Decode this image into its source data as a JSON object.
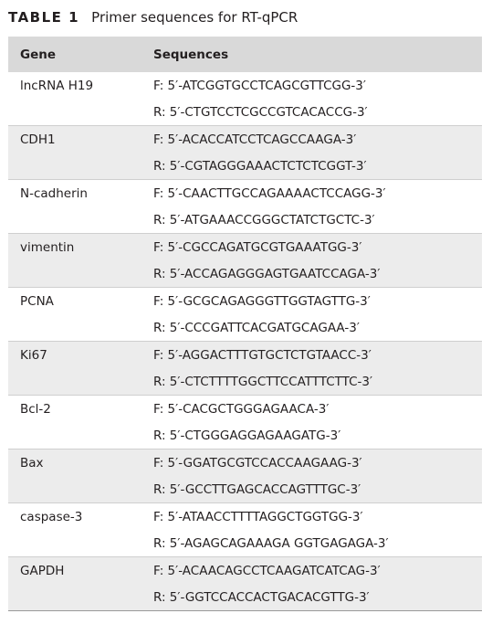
{
  "caption": {
    "label": "TABLE 1",
    "title": "Primer sequences for RT-qPCR"
  },
  "table": {
    "headers": [
      "Gene",
      "Sequences"
    ],
    "rows": [
      {
        "gene": "lncRNA H19",
        "forward": "F: 5′-ATCGGTGCCTCAGCGTTCGG-3′",
        "reverse": "R: 5′-CTGTCCTCGCCGTCACACCG-3′"
      },
      {
        "gene": "CDH1",
        "forward": "F: 5′-ACACCATCCTCAGCCAAGA-3′",
        "reverse": "R: 5′-CGTAGGGAAACTCTCTCGGT-3′"
      },
      {
        "gene": "N-cadherin",
        "forward": "F: 5′-CAACTTGCCAGAAAACTCCAGG-3′",
        "reverse": "R: 5′-ATGAAACCGGGCTATCTGCTC-3′"
      },
      {
        "gene": "vimentin",
        "forward": "F: 5′-CGCCAGATGCGTGAAATGG-3′",
        "reverse": "R: 5′-ACCAGAGGGAGTGAATCCAGA-3′"
      },
      {
        "gene": "PCNA",
        "forward": "F: 5′-GCGCAGAGGGTTGGTAGTTG-3′",
        "reverse": "R: 5′-CCCGATTCACGATGCAGAA-3′"
      },
      {
        "gene": "Ki67",
        "forward": "F: 5′-AGGACTTTGTGCTCTGTAACC-3′",
        "reverse": "R: 5′-CTCTTTTGGCTTCCATTTCTTC-3′"
      },
      {
        "gene": "Bcl-2",
        "forward": "F: 5′-CACGCTGGGAGAACA-3′",
        "reverse": "R: 5′-CTGGGAGGAGAAGATG-3′"
      },
      {
        "gene": "Bax",
        "forward": "F: 5′-GGATGCGTCCACCAAGAAG-3′",
        "reverse": "R: 5′-GCCTTGAGCACCAGTTTGC-3′"
      },
      {
        "gene": "caspase-3",
        "forward": "F: 5′-ATAACCTTTTAGGCTGGTGG-3′",
        "reverse": "R: 5′-AGAGCAGAAAGA GGTGAGAGA-3′"
      },
      {
        "gene": "GAPDH",
        "forward": "F: 5′-ACAACAGCCTCAAGATCATCAG-3′",
        "reverse": "R: 5′-GGTCCACCACTGACACGTTG-3′"
      }
    ]
  },
  "colors": {
    "header_bg": "#d9d9d9",
    "shaded_row_bg": "#ececec",
    "text": "#231f20"
  }
}
